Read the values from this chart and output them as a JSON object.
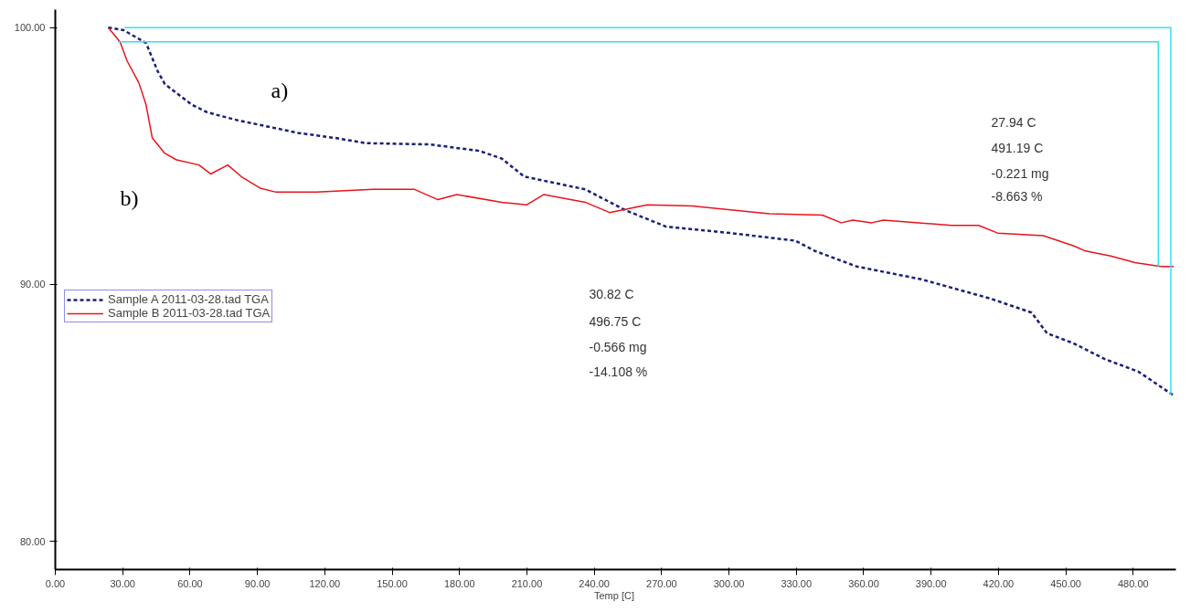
{
  "chart_data": {
    "type": "line",
    "xlabel": "Temp  [C]",
    "xlim": [
      0,
      499
    ],
    "ylim": [
      78.9,
      100.7
    ],
    "xticks": [
      {
        "value": 0,
        "label": "0.00"
      },
      {
        "value": 30,
        "label": "30.00"
      },
      {
        "value": 60,
        "label": "60.00"
      },
      {
        "value": 90,
        "label": "90.00"
      },
      {
        "value": 120,
        "label": "120.00"
      },
      {
        "value": 150,
        "label": "150.00"
      },
      {
        "value": 180,
        "label": "180.00"
      },
      {
        "value": 210,
        "label": "210.00"
      },
      {
        "value": 240,
        "label": "240.00"
      },
      {
        "value": 270,
        "label": "270.00"
      },
      {
        "value": 300,
        "label": "300.00"
      },
      {
        "value": 330,
        "label": "330.00"
      },
      {
        "value": 360,
        "label": "360.00"
      },
      {
        "value": 390,
        "label": "390.00"
      },
      {
        "value": 420,
        "label": "420.00"
      },
      {
        "value": 450,
        "label": "450.00"
      },
      {
        "value": 480,
        "label": "480.00"
      }
    ],
    "yticks": [
      {
        "value": 80,
        "label": "80.00"
      },
      {
        "value": 90,
        "label": "90.00"
      },
      {
        "value": 100,
        "label": "100.00"
      }
    ],
    "grid": false,
    "legend": "left",
    "marker": "none",
    "series": [
      {
        "name": "Sample A 2011-03-28.tad TGA",
        "color": "#1a1f7a",
        "line_style": "dashed",
        "x": [
          23.6,
          30.4,
          40.4,
          45.6,
          48.8,
          60.8,
          67.6,
          80.8,
          108,
          124.8,
          138.4,
          166.8,
          188.8,
          198.8,
          208.8,
          236,
          253.6,
          272,
          300.8,
          329.6,
          338.4,
          356.8,
          385.6,
          416.4,
          434.8,
          441.6,
          453.6,
          467.2,
          482.4,
          497.6
        ],
        "values": [
          100.0,
          99.9,
          99.4,
          98.3,
          97.8,
          97.0,
          96.7,
          96.4,
          95.9,
          95.7,
          95.5,
          95.45,
          95.2,
          94.9,
          94.2,
          93.7,
          92.9,
          92.25,
          92.0,
          91.7,
          91.3,
          90.7,
          90.2,
          89.45,
          88.9,
          88.1,
          87.7,
          87.1,
          86.6,
          85.7
        ]
      },
      {
        "name": "Sample B 2011-03-28.tad TGA",
        "color": "#e8141c",
        "line_style": "solid",
        "x": [
          23.6,
          28.8,
          32,
          37.2,
          40.4,
          43.2,
          48.8,
          54,
          64,
          69.2,
          76.8,
          82.8,
          91.2,
          98,
          116.4,
          141.6,
          160,
          170.4,
          178.8,
          198.8,
          210,
          217.6,
          236,
          246.8,
          263.6,
          284,
          318,
          341.6,
          350,
          355.2,
          363.6,
          368.8,
          399.2,
          411.2,
          419.6,
          440,
          453.6,
          458.8,
          470.4,
          480.8,
          492.4,
          498
        ],
        "values": [
          100.0,
          99.45,
          98.7,
          97.85,
          97.0,
          95.7,
          95.1,
          94.85,
          94.65,
          94.3,
          94.65,
          94.2,
          93.75,
          93.6,
          93.6,
          93.7,
          93.7,
          93.3,
          93.5,
          93.2,
          93.1,
          93.5,
          93.2,
          92.8,
          93.1,
          93.05,
          92.75,
          92.7,
          92.4,
          92.5,
          92.4,
          92.5,
          92.3,
          92.3,
          92.0,
          91.9,
          91.5,
          91.3,
          91.1,
          90.85,
          90.7,
          90.7
        ]
      },
      {
        "color": "#33e0f0",
        "line_style": "solid",
        "x": [
          30.82,
          496.75,
          496.75
        ],
        "values": [
          100.0,
          100.0,
          85.7
        ]
      },
      {
        "color": "#33e0f0",
        "line_style": "solid",
        "x": [
          27.94,
          491.19,
          491.19
        ],
        "values": [
          99.45,
          99.45,
          90.7
        ]
      }
    ],
    "annotations": [
      "a)",
      "b)",
      "27.94 C",
      "491.19 C",
      "-0.221 mg",
      "-8.663 %",
      "30.82 C",
      "496.75 C",
      "-0.566 mg",
      "-14.108 %"
    ]
  }
}
